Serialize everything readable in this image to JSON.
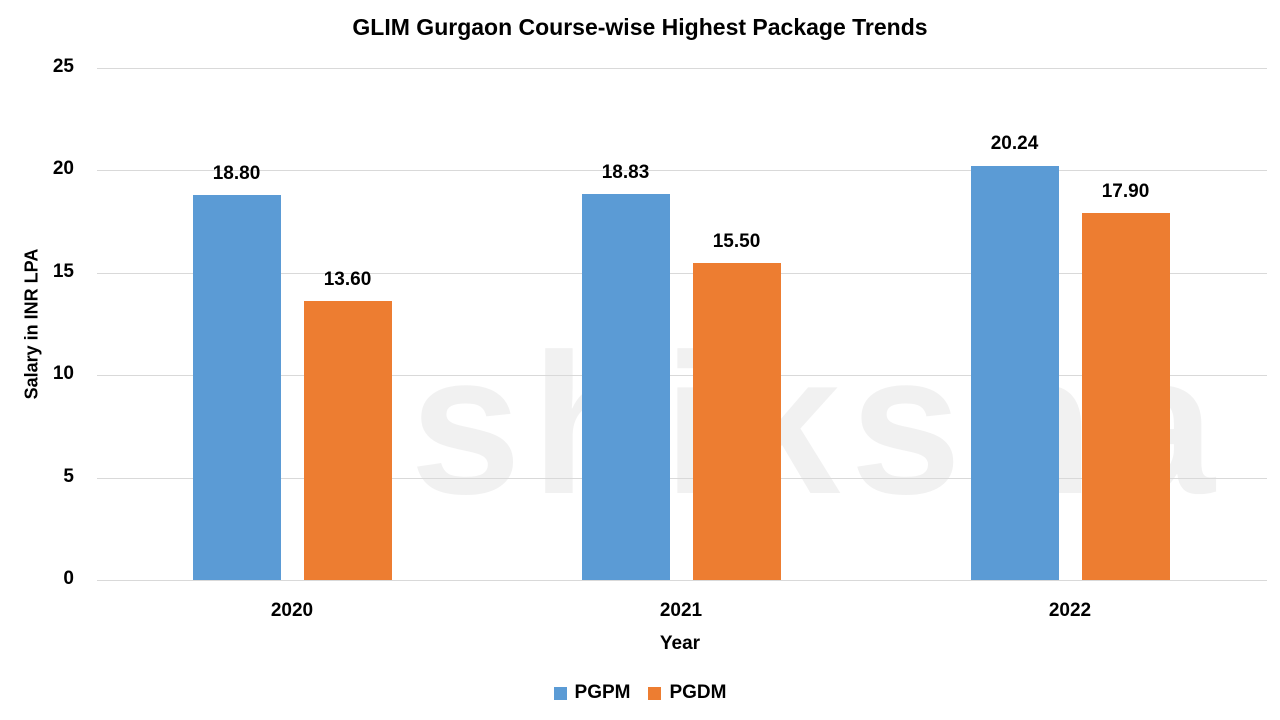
{
  "chart_data": {
    "type": "bar",
    "title": "GLIM Gurgaon Course-wise Highest Package Trends",
    "xlabel": "Year",
    "ylabel": "Salary in INR LPA",
    "ylim": [
      0,
      25
    ],
    "yticks": [
      "0",
      "5",
      "10",
      "15",
      "20",
      "25"
    ],
    "grid": true,
    "legend_position": "bottom",
    "categories": [
      "2020",
      "2021",
      "2022"
    ],
    "series": [
      {
        "name": "PGPM",
        "color": "#5b9bd5",
        "values": [
          18.8,
          18.83,
          20.24
        ],
        "labels": [
          "18.80",
          "18.83",
          "20.24"
        ]
      },
      {
        "name": "PGDM",
        "color": "#ed7d31",
        "values": [
          13.6,
          15.5,
          17.9
        ],
        "labels": [
          "13.60",
          "15.50",
          "17.90"
        ]
      }
    ]
  },
  "watermark": "shiksha"
}
